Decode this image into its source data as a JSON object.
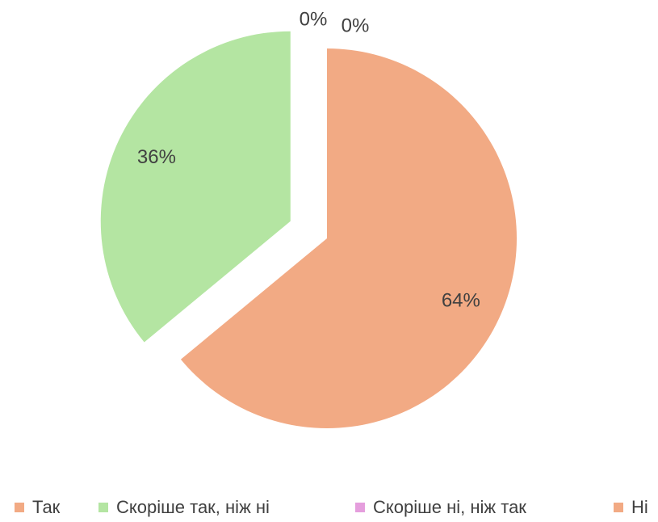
{
  "chart_data": {
    "type": "pie",
    "categories": [
      "Так",
      "Скоріше так, ніж ні",
      "Скоріше ні, ніж так",
      "Ні"
    ],
    "values": [
      64,
      36,
      0,
      0
    ],
    "value_labels": [
      "64%",
      "36%",
      "0%",
      "0%"
    ],
    "colors": [
      "#f2aa84",
      "#b4e5a2",
      "#e59edd",
      "#f2aa84"
    ],
    "legend": "bottom"
  }
}
